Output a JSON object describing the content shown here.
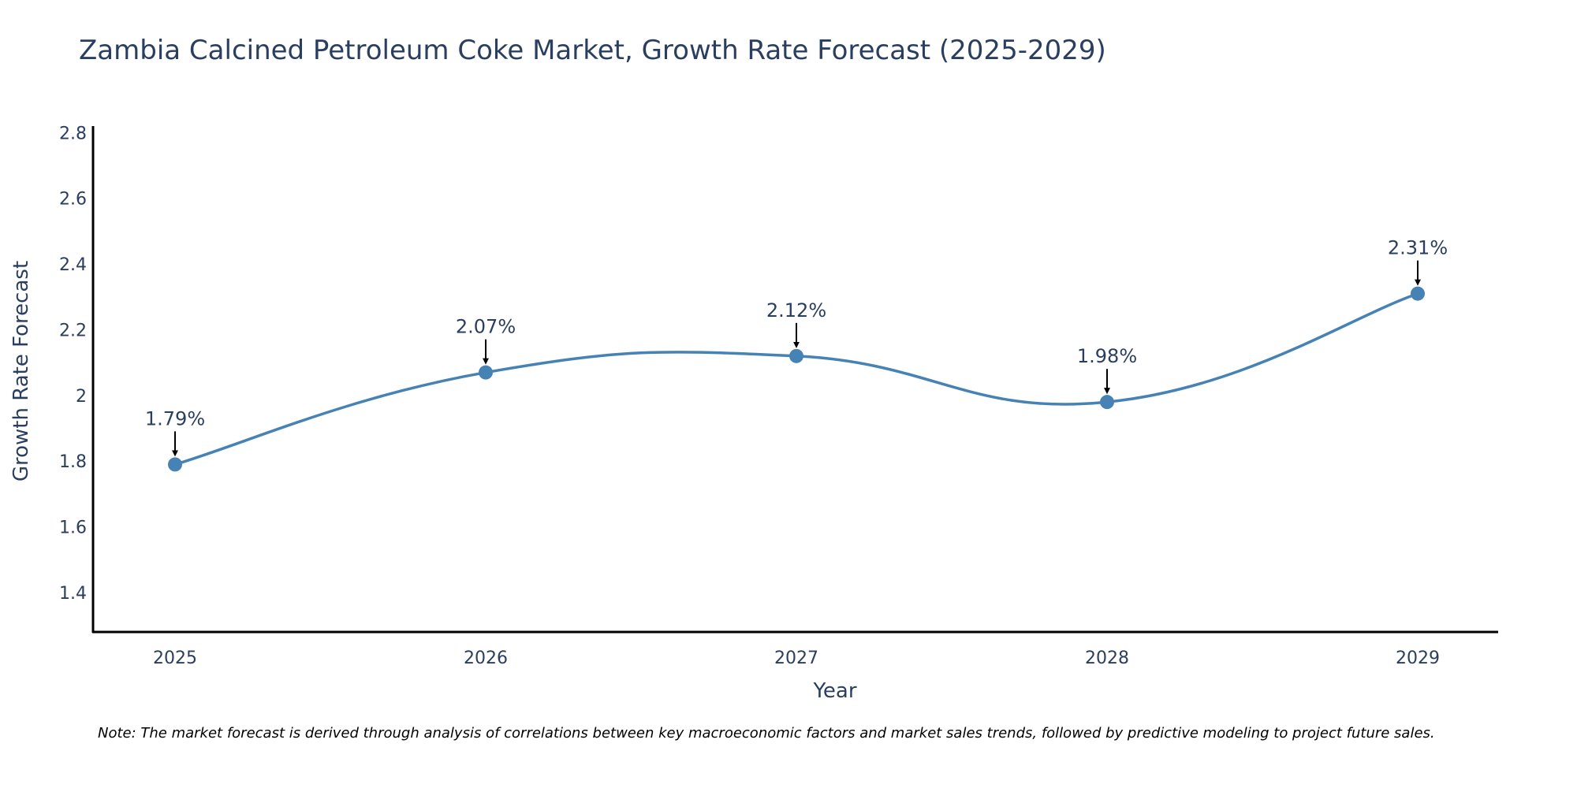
{
  "title": "Zambia Calcined Petroleum Coke Market, Growth Rate Forecast (2025-2029)",
  "footnote": "Note: The market forecast is derived through analysis of correlations between key macroeconomic factors and market sales trends, followed by predictive modeling to project future sales.",
  "colors": {
    "line": "#4682b4",
    "marker": "#4682b4",
    "axis": "#000000",
    "text": "#2a3f5f",
    "arrow": "#000000"
  },
  "chart_data": {
    "type": "line",
    "title": "Zambia Calcined Petroleum Coke Market, Growth Rate Forecast (2025-2029)",
    "xlabel": "Year",
    "ylabel": "Growth Rate Forecast",
    "categories": [
      "2025",
      "2026",
      "2027",
      "2028",
      "2029"
    ],
    "series": [
      {
        "name": "Growth Rate Forecast",
        "values": [
          1.79,
          2.07,
          2.12,
          1.98,
          2.31
        ],
        "labels": [
          "1.79%",
          "2.07%",
          "2.12%",
          "1.98%",
          "2.31%"
        ]
      }
    ],
    "ylim": [
      1.28,
      2.82
    ],
    "yticks": [
      1.4,
      1.6,
      1.8,
      2,
      2.2,
      2.4,
      2.6,
      2.8
    ],
    "ytick_labels": [
      "1.4",
      "1.6",
      "1.8",
      "2",
      "2.2",
      "2.4",
      "2.6",
      "2.8"
    ],
    "grid": false,
    "smoothing": "spline"
  }
}
